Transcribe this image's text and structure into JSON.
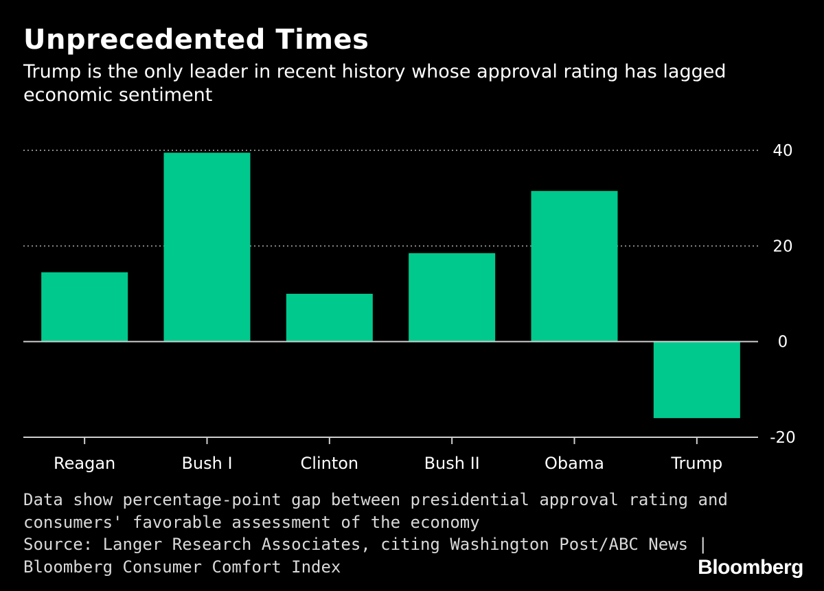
{
  "title": "Unprecedented Times",
  "subtitle": "Trump is the only leader in recent history whose approval rating has lagged economic sentiment",
  "footnote": {
    "line1": "Data show percentage-point gap between presidential approval rating and",
    "line2": "consumers' favorable assessment of the economy",
    "line3": "Source: Langer Research Associates, citing Washington Post/ABC News |",
    "line4": "Bloomberg Consumer Comfort Index"
  },
  "brand": "Bloomberg",
  "colors": {
    "bar": "#00c98d",
    "background": "#000000",
    "grid": "#8c8c8c",
    "axis": "#d0d0d0"
  },
  "chart_data": {
    "type": "bar",
    "categories": [
      "Reagan",
      "Bush I",
      "Clinton",
      "Bush II",
      "Obama",
      "Trump"
    ],
    "values": [
      14.5,
      39.5,
      10,
      18.5,
      31.5,
      -16
    ],
    "ylim": [
      -20,
      40
    ],
    "yticks": [
      40,
      20,
      0,
      -20
    ],
    "ytick_labels": [
      "40",
      "20",
      "0",
      "-20"
    ],
    "grid": true,
    "xlabel": "",
    "ylabel": ""
  }
}
